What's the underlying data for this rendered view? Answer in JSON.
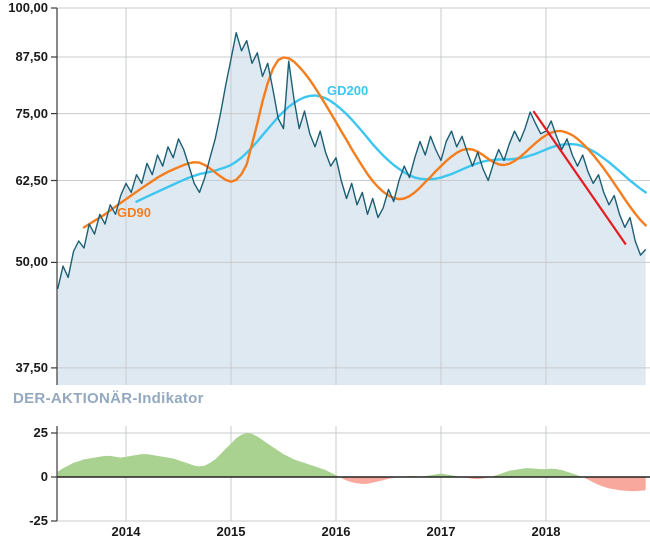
{
  "labels": {
    "gd90": "GD90",
    "gd200": "GD200",
    "indicator_title": "DER-AKTIONÄR-Indikator"
  },
  "colors": {
    "price": "#1c5f74",
    "price_fill": "#dfe9f1",
    "gd90": "#f57d1e",
    "gd200": "#3dc6ef",
    "trend": "#e41d20",
    "grid": "#c9ccce",
    "axis": "#3a3a3a",
    "zero_line": "#222222",
    "indicator_pos": "#a9d18f",
    "indicator_neg": "#f9a89d",
    "indicator_title": "#94a9c0",
    "tick_text": "#1a1a1a"
  },
  "axes": {
    "main_y_ticks": [
      {
        "label": "100,00",
        "value": 100
      },
      {
        "label": "87,50",
        "value": 87.5
      },
      {
        "label": "75,00",
        "value": 75
      },
      {
        "label": "62,50",
        "value": 62.5
      },
      {
        "label": "50,00",
        "value": 50
      },
      {
        "label": "37,50",
        "value": 37.5
      }
    ],
    "indicator_y_ticks": [
      {
        "label": "25",
        "value": 25
      },
      {
        "label": "0",
        "value": 0
      },
      {
        "label": "-25",
        "value": -25
      }
    ],
    "x_ticks": [
      {
        "label": "2014",
        "value": 2014
      },
      {
        "label": "2015",
        "value": 2015
      },
      {
        "label": "2016",
        "value": 2016
      },
      {
        "label": "2017",
        "value": 2017
      },
      {
        "label": "2018",
        "value": 2018
      }
    ]
  },
  "chart_data": [
    {
      "type": "line",
      "name": "price-with-moving-averages",
      "title": "",
      "y_scale": "log",
      "ylim": [
        35.8,
        101
      ],
      "x_unit": "year",
      "x_start": 2013.35,
      "x_step": 0.05,
      "x_range": [
        2013.35,
        2018.95
      ],
      "y_ticks": [
        100,
        87.5,
        75,
        62.5,
        50,
        37.5
      ],
      "x_tick_years": [
        2014,
        2015,
        2016,
        2017,
        2018
      ],
      "legend_position": "inline-labels",
      "grid": true,
      "series": [
        {
          "name": "price",
          "color_key": "price",
          "area_fill": true,
          "values": [
            46.5,
            49.5,
            48,
            51.5,
            53,
            52,
            55.5,
            54,
            57,
            55.5,
            58.5,
            57,
            60,
            62,
            60.5,
            63.5,
            62,
            65.5,
            63.5,
            67,
            65,
            68.5,
            66.5,
            70,
            68,
            65,
            62,
            60.5,
            63,
            66.5,
            70,
            75,
            81,
            87,
            93.5,
            89,
            91.5,
            86,
            88.5,
            83,
            86,
            80,
            74,
            72,
            86.5,
            78,
            72,
            75.5,
            71,
            68.5,
            71.5,
            67.5,
            65,
            66.5,
            62.5,
            59.5,
            62,
            58.5,
            60.5,
            57,
            59.5,
            56.5,
            58,
            61,
            59,
            62.5,
            65,
            63,
            66.5,
            69.5,
            67,
            70.5,
            68,
            66,
            69.5,
            71.5,
            68.5,
            70.5,
            67.5,
            65,
            67.5,
            64.5,
            62.5,
            65.5,
            68,
            66,
            69,
            71.5,
            69.5,
            72,
            75.3,
            73,
            71,
            71.5,
            73.5,
            70.5,
            68,
            70,
            67,
            65,
            67,
            64,
            62,
            63.5,
            60.5,
            58.5,
            60,
            57,
            55,
            56.5,
            53,
            51,
            51.8
          ]
        },
        {
          "name": "GD90",
          "color_key": "gd90",
          "values": [
            null,
            null,
            null,
            null,
            null,
            55,
            55.5,
            56,
            56.5,
            57,
            57.6,
            58.2,
            58.8,
            59.4,
            60,
            60.6,
            61.2,
            61.8,
            62.4,
            63,
            63.5,
            64,
            64.4,
            64.8,
            65.2,
            65.5,
            65.7,
            65.6,
            65.2,
            64.6,
            63.9,
            63.2,
            62.6,
            62.3,
            62.6,
            63.6,
            65.3,
            69,
            73,
            77.5,
            81.5,
            84.8,
            86.8,
            87.4,
            87.2,
            86.4,
            85.2,
            83.8,
            82.2,
            80.5,
            78.7,
            76.9,
            75.1,
            73.3,
            71.5,
            69.8,
            68.1,
            66.5,
            65,
            63.6,
            62.4,
            61.4,
            60.6,
            60,
            59.6,
            59.4,
            59.5,
            59.9,
            60.5,
            61.3,
            62.2,
            63.1,
            64.1,
            65,
            65.9,
            66.7,
            67.4,
            67.9,
            68.1,
            68,
            67.6,
            67,
            66.3,
            65.7,
            65.3,
            65.2,
            65.4,
            65.9,
            66.6,
            67.4,
            68.3,
            69.2,
            70,
            70.7,
            71.2,
            71.5,
            71.5,
            71.2,
            70.7,
            70,
            69.1,
            68.1,
            67,
            65.8,
            64.6,
            63.3,
            62,
            60.7,
            59.4,
            58.2,
            57.1,
            56.1,
            55.3
          ]
        },
        {
          "name": "GD200",
          "color_key": "gd200",
          "values": [
            null,
            null,
            null,
            null,
            null,
            null,
            null,
            null,
            null,
            null,
            null,
            null,
            null,
            null,
            null,
            59,
            59.4,
            59.8,
            60.2,
            60.6,
            61,
            61.4,
            61.8,
            62.2,
            62.6,
            63,
            63.3,
            63.6,
            63.8,
            64,
            64.2,
            64.5,
            64.8,
            65.2,
            65.8,
            66.5,
            67.4,
            68.4,
            69.5,
            70.7,
            71.9,
            73.1,
            74.3,
            75.4,
            76.4,
            77.2,
            77.9,
            78.4,
            78.7,
            78.8,
            78.6,
            78.2,
            77.6,
            76.8,
            75.9,
            74.9,
            73.8,
            72.6,
            71.4,
            70.2,
            69,
            67.9,
            66.9,
            66,
            65.2,
            64.5,
            63.9,
            63.4,
            63,
            62.8,
            62.7,
            62.7,
            62.8,
            63,
            63.3,
            63.6,
            64,
            64.4,
            64.8,
            65.2,
            65.5,
            65.8,
            66,
            66.1,
            66.2,
            66.2,
            66.2,
            66.3,
            66.4,
            66.6,
            66.9,
            67.2,
            67.6,
            68,
            68.4,
            68.7,
            68.9,
            69,
            69,
            68.9,
            68.6,
            68.2,
            67.7,
            67.1,
            66.4,
            65.7,
            64.9,
            64.1,
            63.3,
            62.5,
            61.8,
            61.1,
            60.5
          ]
        }
      ],
      "trendline": {
        "name": "downtrend-line",
        "color_key": "trend",
        "x": [
          2017.88,
          2018.76
        ],
        "y": [
          75.5,
          52.5
        ]
      }
    },
    {
      "type": "area",
      "name": "der-aktionaer-indikator",
      "title": "DER-AKTIONÄR-Indikator",
      "ylim": [
        -25,
        25
      ],
      "y_ticks": [
        25,
        0,
        -25
      ],
      "x_unit": "year",
      "x_start": 2013.35,
      "x_step": 0.05,
      "x_range": [
        2013.35,
        2018.95
      ],
      "positive_color_key": "indicator_pos",
      "negative_color_key": "indicator_neg",
      "values": [
        3,
        5,
        6.5,
        8,
        9,
        10,
        10.5,
        11,
        11.5,
        12,
        12,
        11.5,
        11,
        11.5,
        12,
        12.5,
        13,
        13,
        12.5,
        12,
        11.5,
        11,
        10.5,
        9.5,
        8.5,
        7.5,
        6.5,
        6,
        6.5,
        8,
        10,
        13,
        16,
        19,
        22,
        24,
        25,
        24.5,
        23,
        21,
        19,
        17,
        15,
        13,
        11.5,
        10,
        9,
        8,
        7,
        6,
        5,
        4,
        2.5,
        1,
        -0.5,
        -2,
        -3,
        -3.5,
        -4,
        -3.8,
        -3.2,
        -2.5,
        -1.8,
        -1,
        -0.5,
        0,
        0.3,
        0.5,
        0.5,
        0.3,
        0.5,
        1,
        1.5,
        2,
        1.5,
        1,
        0.5,
        0,
        -0.5,
        -1,
        -1.2,
        -0.8,
        -0.3,
        0.5,
        1.5,
        2.5,
        3.5,
        4,
        4.5,
        5,
        5,
        4.8,
        4.5,
        4.5,
        4.8,
        4.5,
        4,
        3,
        2,
        1,
        0,
        -1.5,
        -3,
        -4.5,
        -5.5,
        -6.5,
        -7,
        -7.5,
        -7.8,
        -8,
        -8,
        -7.8,
        -7.5
      ]
    }
  ]
}
